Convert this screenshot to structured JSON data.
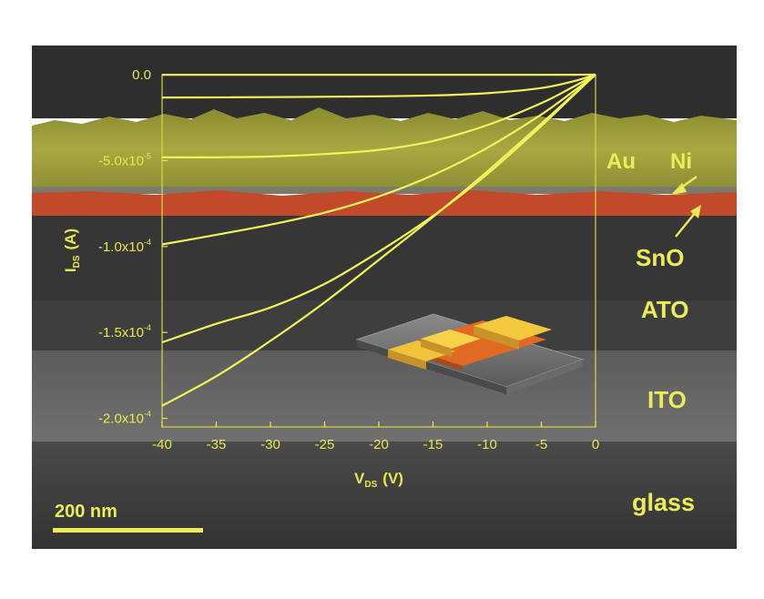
{
  "chart_data": {
    "type": "line",
    "xlabel_main": "V",
    "xlabel_sub": "DS",
    "xlabel_unit": "(V)",
    "ylabel_main": "I",
    "ylabel_sub": "DS",
    "ylabel_unit": "(A)",
    "xlim": [
      -40,
      0
    ],
    "ylim": [
      -0.000205,
      0
    ],
    "x_ticks": [
      -40,
      -35,
      -30,
      -25,
      -20,
      -15,
      -10,
      -5,
      0
    ],
    "x_tick_labels": [
      "-40",
      "-35",
      "-30",
      "-25",
      "-20",
      "-15",
      "-10",
      "-5",
      "0"
    ],
    "y_ticks": [
      0,
      -5e-05,
      -0.0001,
      -0.00015,
      -0.0002
    ],
    "y_tick_labels": [
      {
        "mant": "0.0",
        "exp": ""
      },
      {
        "mant": "-5.0x10",
        "exp": "-5"
      },
      {
        "mant": "-1.0x10",
        "exp": "-4"
      },
      {
        "mant": "-1.5x10",
        "exp": "-4"
      },
      {
        "mant": "-2.0x10",
        "exp": "-4"
      }
    ],
    "series": [
      {
        "x": [
          -40,
          -30,
          -20,
          -10,
          -5,
          -2,
          0
        ],
        "values": [
          -1e-07,
          -1e-07,
          -1e-07,
          -1e-07,
          -1e-07,
          -5e-08,
          0
        ]
      },
      {
        "x": [
          -40,
          -30,
          -20,
          -15,
          -10,
          -5,
          -2,
          0
        ],
        "values": [
          -1.33e-05,
          -1.31e-05,
          -1.26e-05,
          -1.21e-05,
          -1.08e-05,
          -7.8e-06,
          -3.8e-06,
          0
        ]
      },
      {
        "x": [
          -40,
          -35,
          -30,
          -25,
          -20,
          -15,
          -10,
          -5,
          -2,
          0
        ],
        "values": [
          -4.81e-05,
          -4.81e-05,
          -4.76e-05,
          -4.62e-05,
          -4.38e-05,
          -3.86e-05,
          -2.94e-05,
          -1.66e-05,
          -6.9e-06,
          0
        ]
      },
      {
        "x": [
          -40,
          -35,
          -30,
          -25,
          -20,
          -15,
          -10,
          -5,
          -2,
          0
        ],
        "values": [
          -9.88e-05,
          -9.32e-05,
          -8.73e-05,
          -8.03e-05,
          -7.09e-05,
          -5.85e-05,
          -4.26e-05,
          -2.32e-05,
          -9.5e-06,
          0
        ]
      },
      {
        "x": [
          -40,
          -35,
          -30,
          -25,
          -20,
          -15,
          -10,
          -5,
          -2,
          0
        ],
        "values": [
          -0.0001558,
          -0.000145,
          -0.0001355,
          -0.0001218,
          -0.0001031,
          -8.22e-05,
          -5.79e-05,
          -2.98e-05,
          -1.18e-05,
          0
        ]
      },
      {
        "x": [
          -40,
          -35,
          -30,
          -25,
          -20,
          -15,
          -10,
          -5,
          -2,
          0
        ],
        "values": [
          -0.0001927,
          -0.0001755,
          -0.0001549,
          -0.0001325,
          -0.0001078,
          -8.28e-05,
          -5.64e-05,
          -2.85e-05,
          -1.13e-05,
          0
        ]
      }
    ]
  },
  "layers": {
    "au": "Au",
    "ni": "Ni",
    "sno": "SnO",
    "ato": "ATO",
    "ito": "ITO",
    "glass": "glass"
  },
  "scale_bar": "200 nm",
  "colors": {
    "curve": "#f2f25a",
    "axis": "#e8e84e",
    "label": "#f0f060",
    "au_layer": "#9c9c3a",
    "sno_layer": "#c84a2a",
    "ato_layer": "#3a3a3a",
    "ito_layer": "#6a6a6a",
    "glass_layer": "#3c3c3c"
  }
}
